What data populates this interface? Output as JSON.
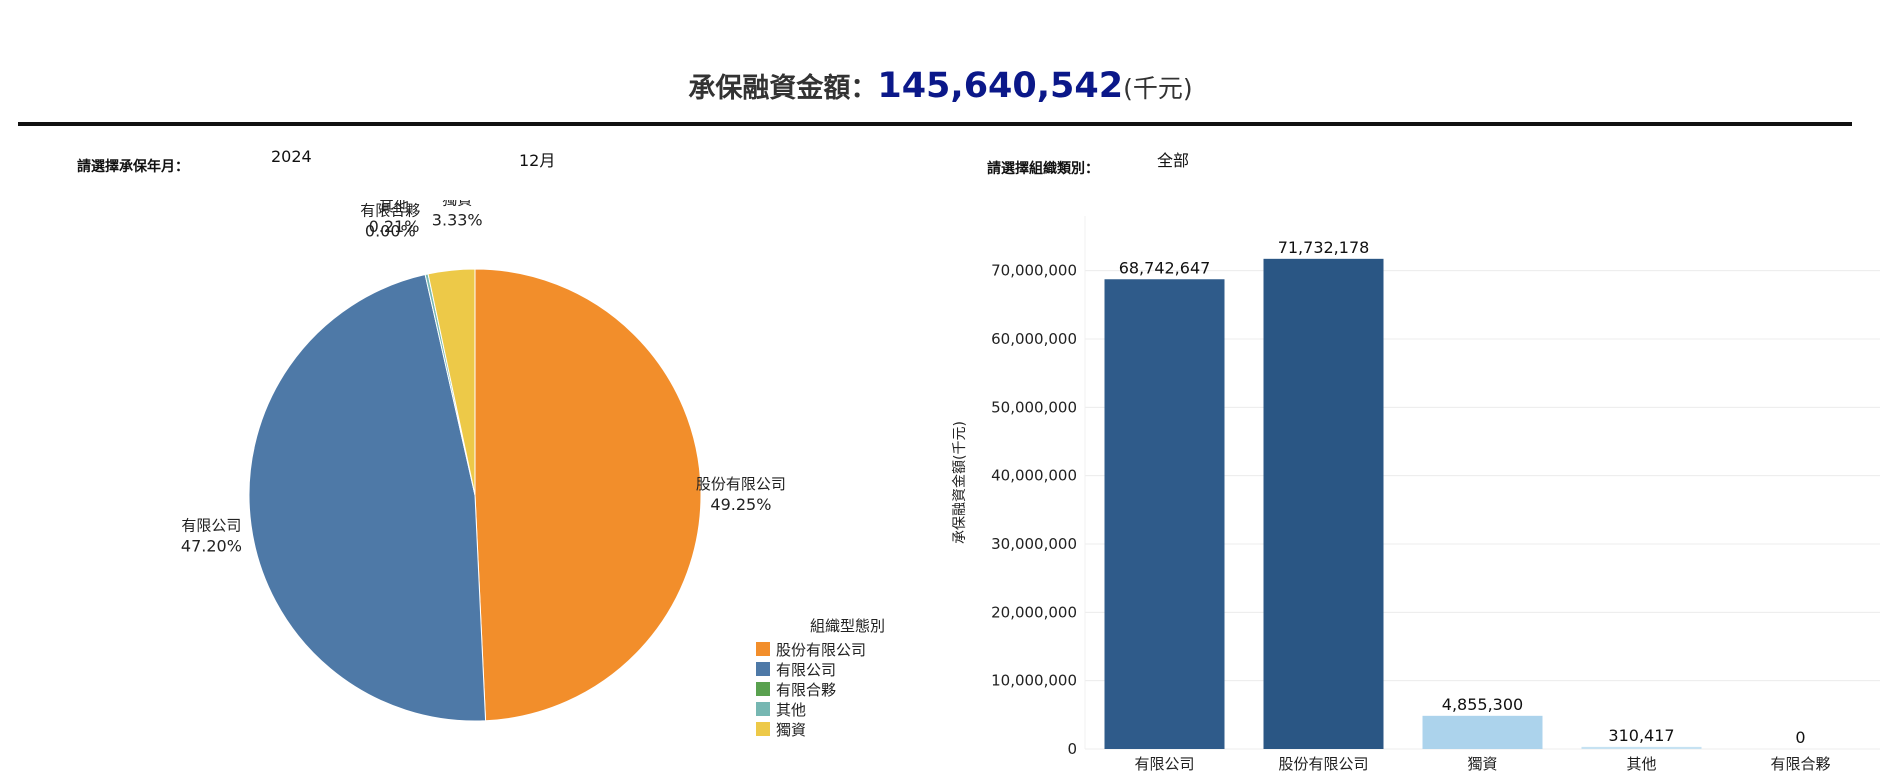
{
  "header": {
    "label": "承保融資金額：",
    "amount": "145,640,542",
    "unit": "(千元)"
  },
  "filters": {
    "period_label": "請選擇承保年月：",
    "year": "2024",
    "month": "12月",
    "org_type_label": "請選擇組織類別：",
    "org_type_value": "全部"
  },
  "legend": {
    "title": "組織型態別",
    "items": [
      "股份有限公司",
      "有限公司",
      "有限合夥",
      "其他",
      "獨資"
    ]
  },
  "colors": {
    "pie": {
      "股份有限公司": "#f28e2b",
      "有限公司": "#4e79a7",
      "有限合夥": "#59a14f",
      "其他": "#76b7b2",
      "獨資": "#edc948"
    },
    "bar_dark": "#2f5b8a",
    "bar_darker": "#2a5684",
    "bar_light": "#acd3ec",
    "bar_lighter": "#c6e2f2"
  },
  "chart_data": [
    {
      "type": "pie",
      "slices": [
        {
          "label": "股份有限公司",
          "value": 49.25,
          "text": "49.25%"
        },
        {
          "label": "有限公司",
          "value": 47.2,
          "text": "47.20%"
        },
        {
          "label": "有限合夥",
          "value": 0.0,
          "text": "0.00%"
        },
        {
          "label": "其他",
          "value": 0.21,
          "text": "0.21%"
        },
        {
          "label": "獨資",
          "value": 3.33,
          "text": "3.33%"
        }
      ],
      "legend_title": "組織型態別",
      "legend_position": "bottom-right"
    },
    {
      "type": "bar",
      "categories": [
        "有限公司",
        "股份有限公司",
        "獨資",
        "其他",
        "有限合夥"
      ],
      "values": [
        68742647,
        71732178,
        4855300,
        310417,
        0
      ],
      "value_labels": [
        "68,742,647",
        "71,732,178",
        "4,855,300",
        "310,417",
        "0"
      ],
      "ylabel": "承保融資金額(千元)",
      "yticks": [
        0,
        10000000,
        20000000,
        30000000,
        40000000,
        50000000,
        60000000,
        70000000
      ],
      "ytick_labels": [
        "0",
        "10,000,000",
        "20,000,000",
        "30,000,000",
        "40,000,000",
        "50,000,000",
        "60,000,000",
        "70,000,000"
      ],
      "ylim": [
        0,
        78000000
      ],
      "grid": true
    }
  ]
}
